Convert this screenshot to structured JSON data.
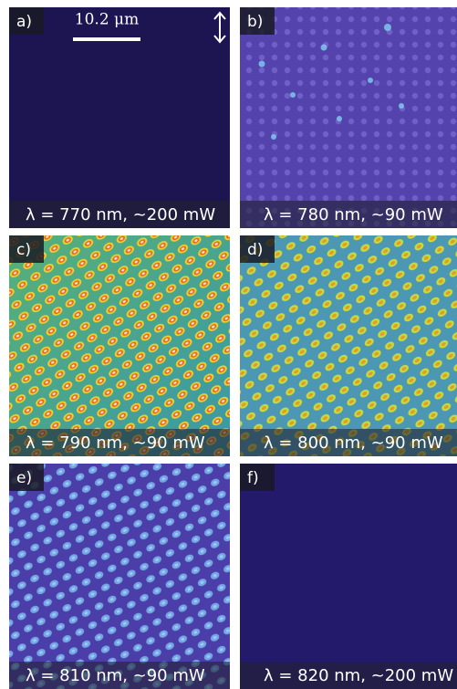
{
  "figure": {
    "scale_bar": "10.2 μm",
    "panels": [
      {
        "label": "a)",
        "caption": "λ = 770 nm, ~200 mW"
      },
      {
        "label": "b)",
        "caption": "λ = 780 nm, ~90 mW"
      },
      {
        "label": "c)",
        "caption": "λ = 790 nm, ~90 mW"
      },
      {
        "label": "d)",
        "caption": "λ = 800 nm, ~90 mW"
      },
      {
        "label": "e)",
        "caption": "λ = 810 nm, ~90 mW"
      },
      {
        "label": "f)",
        "caption": "λ = 820 nm, ~200 mW"
      }
    ]
  }
}
